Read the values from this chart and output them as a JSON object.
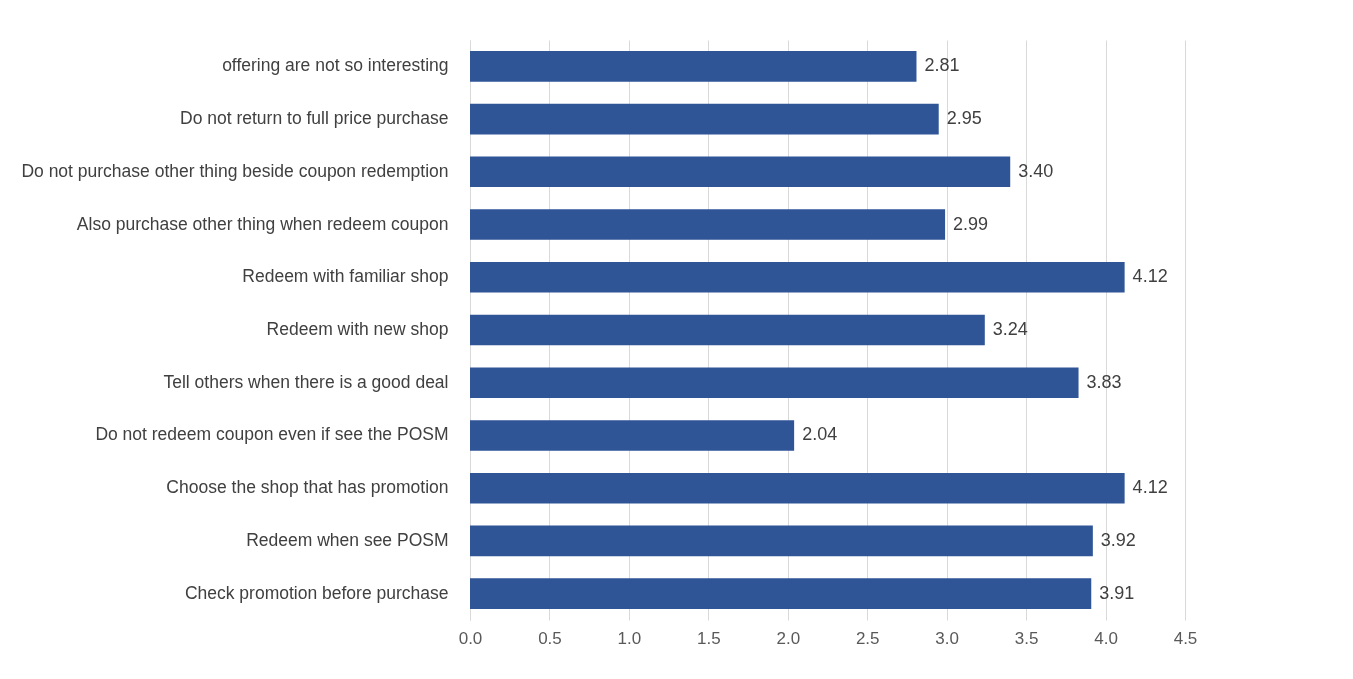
{
  "chart_data": {
    "type": "bar",
    "orientation": "horizontal",
    "categories": [
      "offering are not so interesting",
      "Do not return to full price purchase",
      "Do not purchase other thing beside coupon redemption",
      "Also purchase other thing when redeem coupon",
      "Redeem with familiar shop",
      "Redeem with new shop",
      "Tell others when there is a good deal",
      "Do not redeem coupon even if see the POSM",
      "Choose the shop that has promotion",
      "Redeem when see POSM",
      "Check promotion before purchase"
    ],
    "values": [
      2.81,
      2.95,
      3.4,
      2.99,
      4.12,
      3.24,
      3.83,
      2.04,
      4.12,
      3.92,
      3.91
    ],
    "value_labels": [
      "2.81",
      "2.95",
      "3.40",
      "2.99",
      "4.12",
      "3.24",
      "3.83",
      "2.04",
      "4.12",
      "3.92",
      "3.91"
    ],
    "color": "#2f5597",
    "xlim": [
      0,
      4.5
    ],
    "xticks": [
      {
        "value": 0,
        "label": "0.0"
      },
      {
        "value": 0.5,
        "label": "0.5"
      },
      {
        "value": 1,
        "label": "1.0"
      },
      {
        "value": 1.5,
        "label": "1.5"
      },
      {
        "value": 2,
        "label": "2.0"
      },
      {
        "value": 2.5,
        "label": "2.5"
      },
      {
        "value": 3,
        "label": "3.0"
      },
      {
        "value": 3.5,
        "label": "3.5"
      },
      {
        "value": 4,
        "label": "4.0"
      },
      {
        "value": 4.5,
        "label": "4.5"
      }
    ],
    "grid": "x"
  }
}
